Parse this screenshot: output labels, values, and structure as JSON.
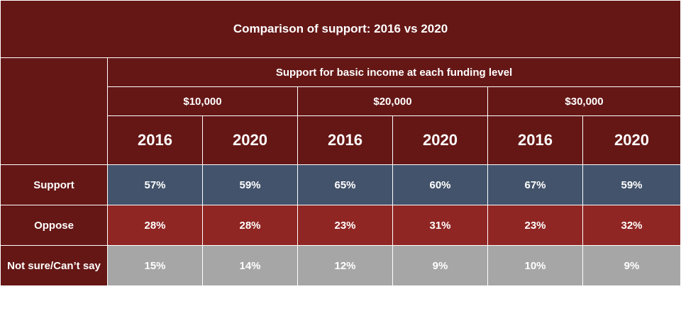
{
  "chart_data": {
    "type": "table",
    "title": "Comparison of support: 2016 vs 2020",
    "group_header": "Support for basic income at each funding level",
    "funding_levels": [
      "$10,000",
      "$20,000",
      "$30,000"
    ],
    "years": [
      "2016",
      "2020",
      "2016",
      "2020",
      "2016",
      "2020"
    ],
    "rows": [
      {
        "label": "Support",
        "values": [
          "57%",
          "59%",
          "65%",
          "60%",
          "67%",
          "59%"
        ]
      },
      {
        "label": "Oppose",
        "values": [
          "28%",
          "28%",
          "23%",
          "31%",
          "23%",
          "32%"
        ]
      },
      {
        "label": "Not sure/Can’t say",
        "values": [
          "15%",
          "14%",
          "12%",
          "9%",
          "10%",
          "9%"
        ]
      }
    ]
  },
  "colors": {
    "header": "#651715",
    "support": "#43536b",
    "oppose": "#902623",
    "not_sure": "#a6a6a6",
    "text": "#ffffff"
  }
}
